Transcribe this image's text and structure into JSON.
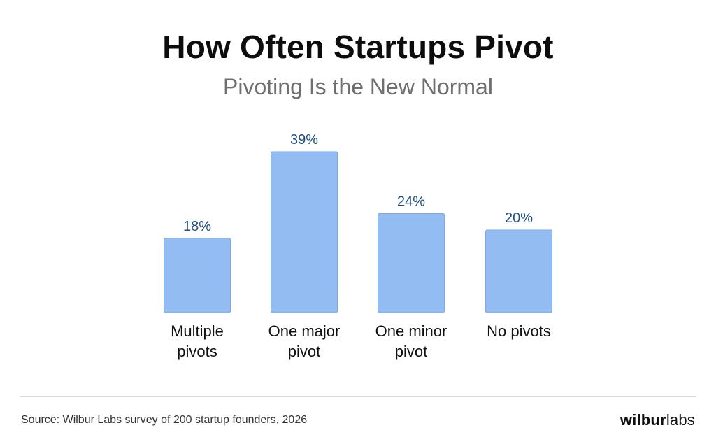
{
  "title": "How Often Startups Pivot",
  "subtitle": "Pivoting Is the New Normal",
  "source": "Source: Wilbur Labs survey of 200 startup founders, 2026",
  "logo": {
    "bold": "wilbur",
    "light": "labs"
  },
  "colors": {
    "bar": "#93bcf2",
    "bar_edge": "#7aaae8",
    "value_label": "#1f4f82",
    "category_label": "#111111"
  },
  "chart_data": {
    "type": "bar",
    "categories": [
      [
        "Multiple",
        "pivots"
      ],
      [
        "One major",
        "pivot"
      ],
      [
        "One minor",
        "pivot"
      ],
      [
        "No pivots"
      ]
    ],
    "values": [
      18,
      39,
      24,
      20
    ],
    "value_labels": [
      "18%",
      "39%",
      "24%",
      "20%"
    ],
    "ylim": [
      0,
      39
    ],
    "grid": false,
    "legend": "none"
  }
}
